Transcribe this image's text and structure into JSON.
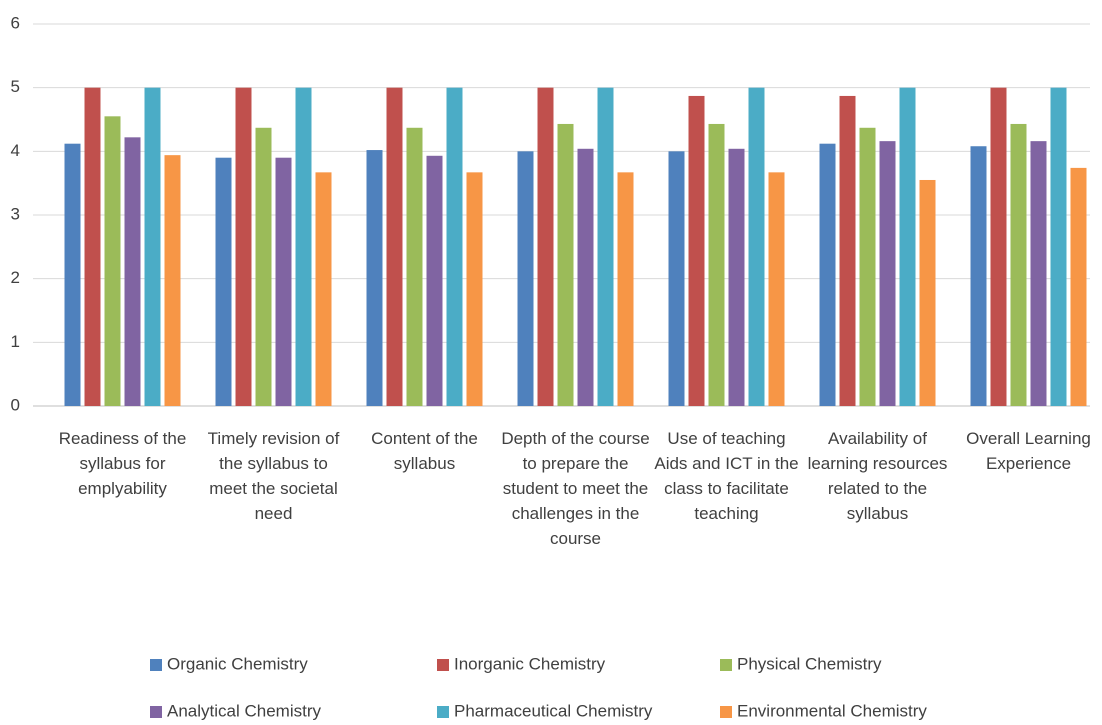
{
  "chart_data": {
    "type": "bar",
    "categories": [
      "Readiness of the syllabus for emplyability",
      "Timely revision of the syllabus to meet the societal need",
      "Content of the syllabus",
      "Depth of the course to prepare the student to meet the challenges in the course",
      "Use of teaching Aids and ICT in the class to facilitate teaching",
      "Availability of learning resources related to the syllabus",
      "Overall Learning Experience"
    ],
    "series": [
      {
        "name": "Organic Chemistry",
        "color": "#4f81bd",
        "values": [
          4.12,
          3.9,
          4.02,
          4.0,
          4.0,
          4.12,
          4.08
        ]
      },
      {
        "name": "Inorganic Chemistry",
        "color": "#c0504d",
        "values": [
          5,
          5,
          5,
          5,
          4.87,
          4.87,
          5
        ]
      },
      {
        "name": "Physical Chemistry",
        "color": "#9bbb59",
        "values": [
          4.55,
          4.37,
          4.37,
          4.43,
          4.43,
          4.37,
          4.43
        ]
      },
      {
        "name": "Analytical Chemistry",
        "color": "#8064a2",
        "values": [
          4.22,
          3.9,
          3.93,
          4.04,
          4.04,
          4.16,
          4.16
        ]
      },
      {
        "name": "Pharmaceutical Chemistry",
        "color": "#4bacc6",
        "values": [
          5,
          5,
          5,
          5,
          5,
          5,
          5
        ]
      },
      {
        "name": "Environmental Chemistry",
        "color": "#f79646",
        "values": [
          3.94,
          3.67,
          3.67,
          3.67,
          3.67,
          3.55,
          3.74
        ]
      }
    ],
    "ylim": [
      0,
      6
    ],
    "yticks": [
      0,
      1,
      2,
      3,
      4,
      5,
      6
    ],
    "grid": true,
    "legend": "bottom"
  }
}
